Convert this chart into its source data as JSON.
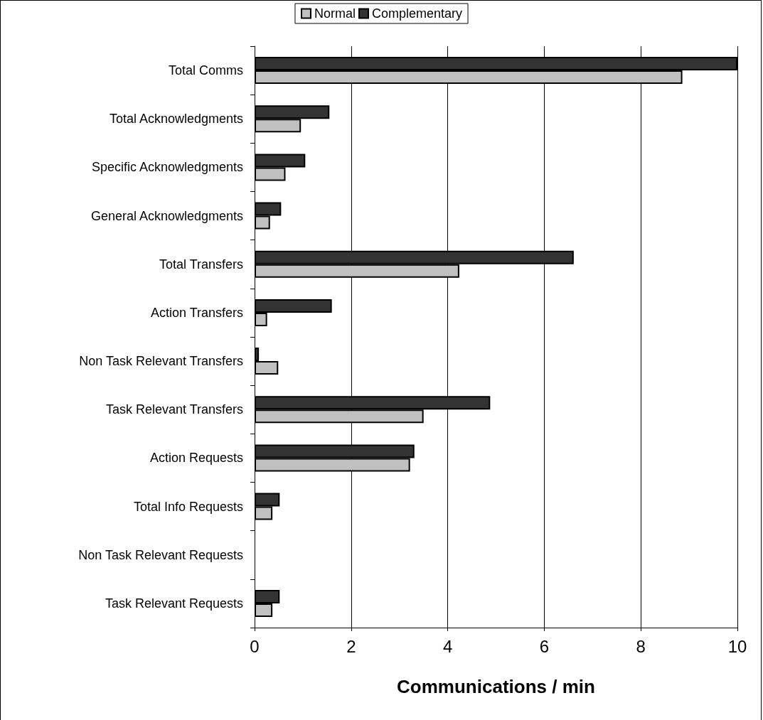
{
  "chart_data": {
    "type": "bar",
    "orientation": "horizontal",
    "xlabel": "Communications / min",
    "categories": [
      "Total Comms",
      "Total Acknowledgments",
      "Specific Acknowledgments",
      "General Acknowledgments",
      "Total Transfers",
      "Action Transfers",
      "Non Task Relevant Transfers",
      "Task Relevant Transfers",
      "Action Requests",
      "Total Info Requests",
      "Non Task Relevant Requests",
      "Task Relevant Requests"
    ],
    "series": [
      {
        "name": "Normal",
        "color": "#c0c0c0",
        "values": [
          8.86,
          0.96,
          0.64,
          0.32,
          4.24,
          0.26,
          0.49,
          3.5,
          3.22,
          0.37,
          0,
          0.37
        ]
      },
      {
        "name": "Complementary",
        "color": "#333333",
        "values": [
          10,
          1.55,
          1.05,
          0.55,
          6.61,
          1.6,
          0.09,
          4.88,
          3.31,
          0.52,
          0,
          0.52
        ]
      }
    ],
    "xlim": [
      0,
      10
    ],
    "xticks": [
      0,
      2,
      4,
      6,
      8,
      10
    ],
    "grid": "x",
    "legend": "top"
  }
}
